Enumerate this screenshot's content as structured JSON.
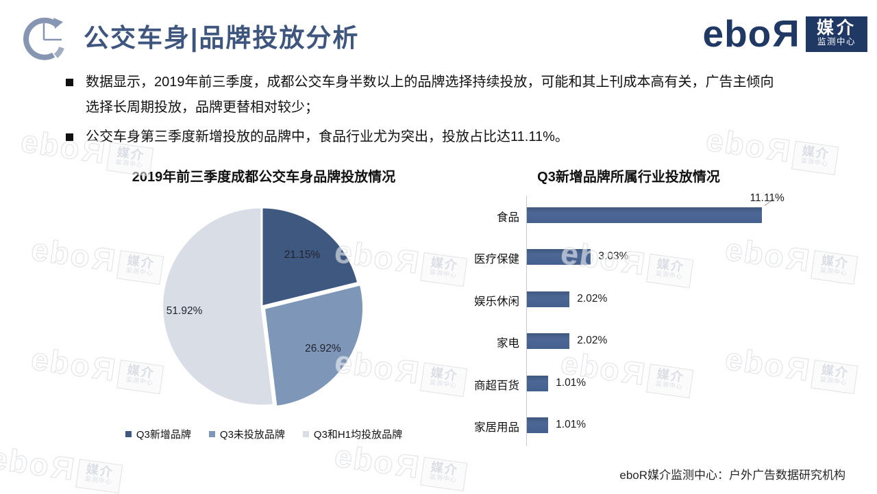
{
  "header": {
    "title": "公交车身|品牌投放分析",
    "logo": {
      "wordmark": "ebo",
      "mirrored_letter": "R",
      "badge_line1": "媒介",
      "badge_line2": "监测中心"
    }
  },
  "bullets": [
    "数据显示，2019年前三季度，成都公交车身半数以上的品牌选择持续投放，可能和其上刊成本高有关，广告主倾向\n选择长周期投放，品牌更替相对较少；",
    "公交车身第三季度新增投放的品牌中，食品行业尤为突出，投放占比达11.11%。"
  ],
  "watermark": {
    "wordmark": "ebo",
    "mirrored_letter": "R",
    "badge_line1": "媒介",
    "badge_line2": "监测中心"
  },
  "footer": "eboR媒介监测中心：户外广告数据研究机构",
  "colors": {
    "title": "#3E557E",
    "brand_navy": "#1F3864",
    "pie_dark": "#3E5880",
    "pie_medium": "#7E97B8",
    "pie_light": "#D8DDE6",
    "bar": "#48628F",
    "axis": "#C6C6C6"
  },
  "chart_data": [
    {
      "type": "pie",
      "title": "2019年前三季度成都公交车身品牌投放情况",
      "labels": [
        "Q3新增品牌",
        "Q3未投放品牌",
        "Q3和H1均投放品牌"
      ],
      "values": [
        21.15,
        26.92,
        51.92
      ],
      "value_labels": [
        "21.15%",
        "26.92%",
        "51.92%"
      ],
      "colors": [
        "#3E5880",
        "#7E97B8",
        "#D8DDE6"
      ],
      "start_angle_deg": 0,
      "direction": "clockwise",
      "legend_position": "bottom"
    },
    {
      "type": "bar",
      "orientation": "horizontal",
      "title": "Q3新增品牌所属行业投放情况",
      "categories": [
        "食品",
        "医疗保健",
        "娱乐休闲",
        "家电",
        "商超百货",
        "家居用品"
      ],
      "values": [
        11.11,
        3.03,
        2.02,
        2.02,
        1.01,
        1.01
      ],
      "value_labels": [
        "11.11%",
        "3.03%",
        "2.02%",
        "2.02%",
        "1.01%",
        "1.01%"
      ],
      "xlim": [
        0,
        12
      ],
      "bar_color": "#48628F",
      "grid": false,
      "callout_index": 0
    }
  ]
}
